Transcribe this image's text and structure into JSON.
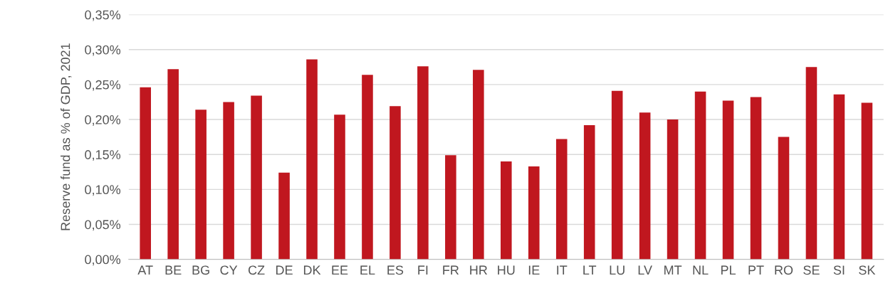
{
  "chart_data": {
    "type": "bar",
    "ylabel": "Reserve fund as % of GDP, 2021",
    "categories": [
      "AT",
      "BE",
      "BG",
      "CY",
      "CZ",
      "DE",
      "DK",
      "EE",
      "EL",
      "ES",
      "FI",
      "FR",
      "HR",
      "HU",
      "IE",
      "IT",
      "LT",
      "LU",
      "LV",
      "MT",
      "NL",
      "PL",
      "PT",
      "RO",
      "SE",
      "SI",
      "SK"
    ],
    "values": [
      0.246,
      0.272,
      0.214,
      0.225,
      0.234,
      0.124,
      0.286,
      0.207,
      0.264,
      0.219,
      0.276,
      0.149,
      0.271,
      0.14,
      0.133,
      0.172,
      0.192,
      0.241,
      0.21,
      0.2,
      0.24,
      0.227,
      0.232,
      0.175,
      0.275,
      0.236,
      0.224
    ],
    "color": "#c0171f",
    "ylim": [
      0,
      0.35
    ],
    "yticks": [
      {
        "value": 0,
        "label": "0,00%"
      },
      {
        "value": 0.05,
        "label": "0,05%"
      },
      {
        "value": 0.1,
        "label": "0,10%"
      },
      {
        "value": 0.15,
        "label": "0,15%"
      },
      {
        "value": 0.2,
        "label": "0,20%"
      },
      {
        "value": 0.25,
        "label": "0,25%"
      },
      {
        "value": 0.3,
        "label": "0,30%"
      },
      {
        "value": 0.35,
        "label": "0,35%"
      }
    ],
    "grid": "y",
    "legend": false
  }
}
